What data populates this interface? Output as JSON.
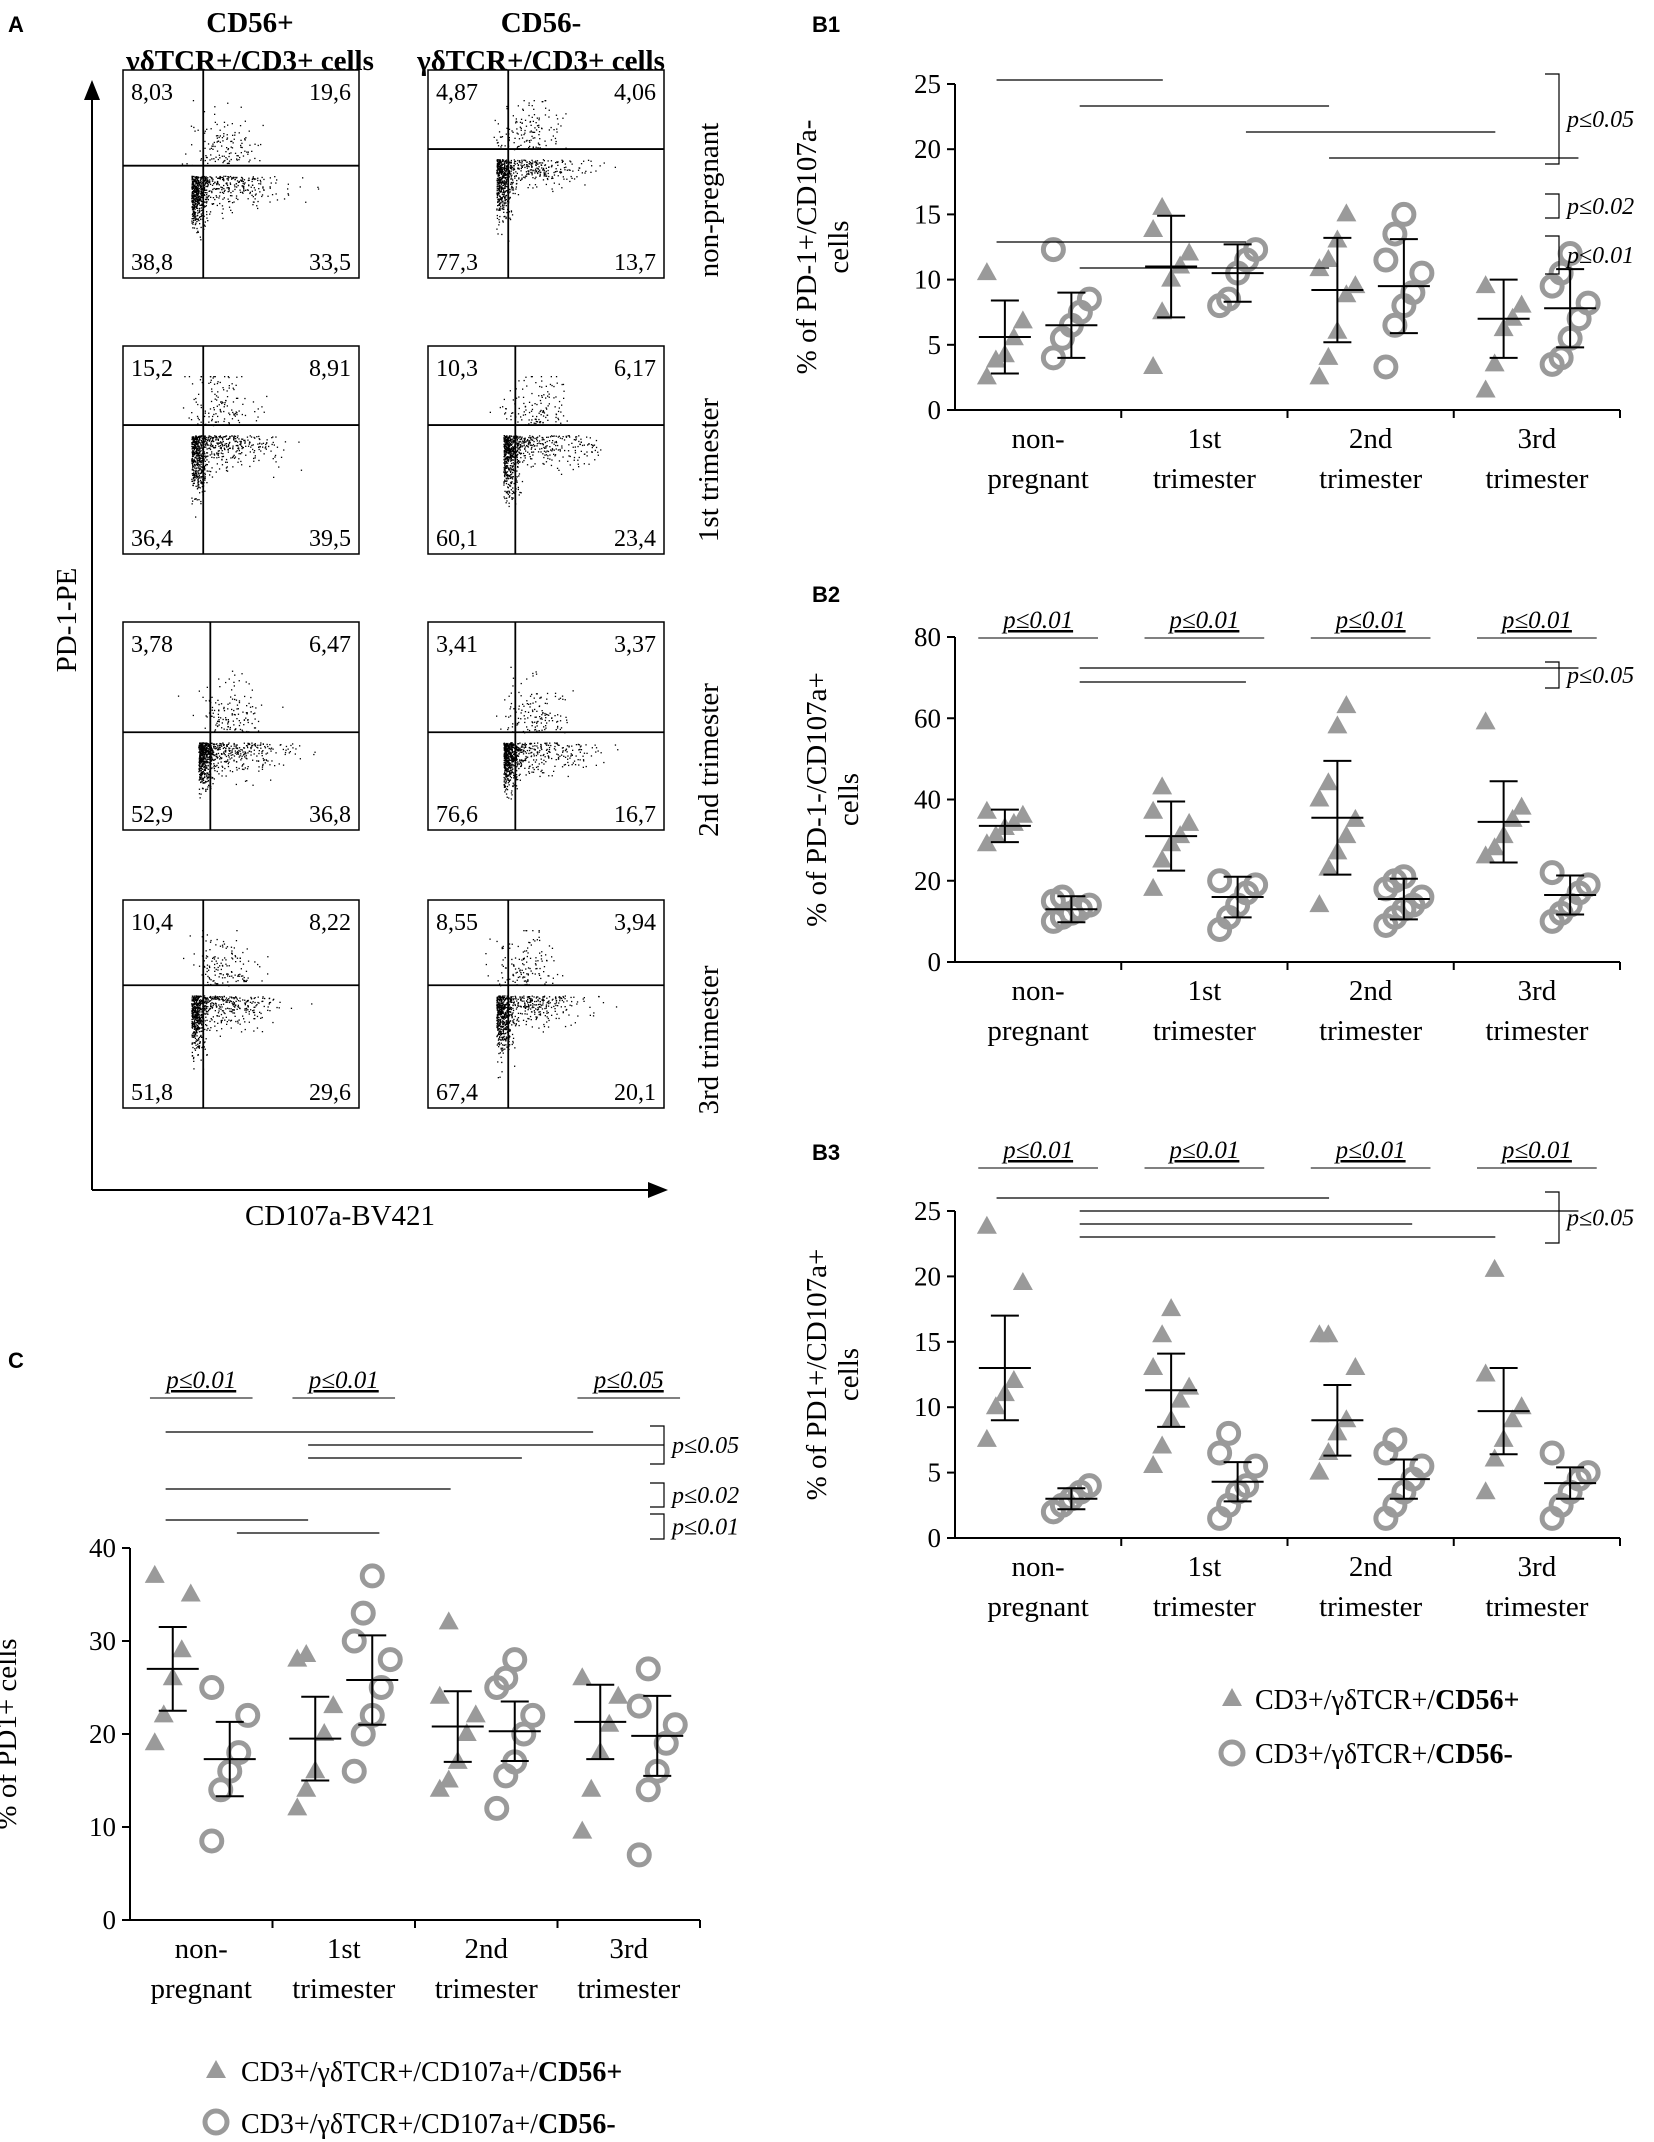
{
  "colors": {
    "marker": "#9a9a9a",
    "axis": "#000000",
    "line": "#000000",
    "text": "#000000"
  },
  "panel_labels": {
    "A": "A",
    "B1": "B1",
    "B2": "B2",
    "B3": "B3",
    "C": "C"
  },
  "groups": [
    "non-\npregnant",
    "1st\ntrimester",
    "2nd\ntrimester",
    "3rd\ntrimester"
  ],
  "panel_A": {
    "col_titles": [
      {
        "line1": "CD56+",
        "line2": "γδTCR+/CD3+ cells"
      },
      {
        "line1": "CD56-",
        "line2": "γδTCR+/CD3+ cells"
      }
    ],
    "row_labels": [
      "non-pregnant",
      "1st trimester",
      "2nd trimester",
      "3rd trimester"
    ],
    "y_axis_label": "PD-1-PE",
    "x_axis_label": "CD107a-BV421",
    "plots": [
      {
        "tl": "8,03",
        "tr": "19,6",
        "bl": "38,8",
        "br": "33,5",
        "vgate": 0.34,
        "hgate": 0.46
      },
      {
        "tl": "4,87",
        "tr": "4,06",
        "bl": "77,3",
        "br": "13,7",
        "vgate": 0.34,
        "hgate": 0.38
      },
      {
        "tl": "15,2",
        "tr": "8,91",
        "bl": "36,4",
        "br": "39,5",
        "vgate": 0.34,
        "hgate": 0.38
      },
      {
        "tl": "10,3",
        "tr": "6,17",
        "bl": "60,1",
        "br": "23,4",
        "vgate": 0.37,
        "hgate": 0.38
      },
      {
        "tl": "3,78",
        "tr": "6,47",
        "bl": "52,9",
        "br": "36,8",
        "vgate": 0.37,
        "hgate": 0.53
      },
      {
        "tl": "3,41",
        "tr": "3,37",
        "bl": "76,6",
        "br": "16,7",
        "vgate": 0.37,
        "hgate": 0.53
      },
      {
        "tl": "10,4",
        "tr": "8,22",
        "bl": "51,8",
        "br": "29,6",
        "vgate": 0.34,
        "hgate": 0.41
      },
      {
        "tl": "8,55",
        "tr": "3,94",
        "bl": "67,4",
        "br": "20,1",
        "vgate": 0.34,
        "hgate": 0.41
      }
    ]
  },
  "legend_B": {
    "pos": "CD3+/γδTCR+/",
    "pos_bold": "CD56+",
    "neg": "CD3+/γδTCR+/",
    "neg_bold": "CD56-"
  },
  "legend_C": {
    "pos": "CD3+/γδTCR+/CD107a+/",
    "pos_bold": "CD56+",
    "neg": "CD3+/γδTCR+/CD107a+/",
    "neg_bold": "CD56-"
  },
  "chart_data": [
    {
      "id": "B1",
      "type": "scatter",
      "title": "",
      "ylabel": "% of PD-1+/CD107a-\ncells",
      "ylim": [
        0,
        25
      ],
      "yticks": [
        0,
        5,
        10,
        15,
        20,
        25
      ],
      "categories": [
        "non-pregnant",
        "1st trimester",
        "2nd trimester",
        "3rd trimester"
      ],
      "series": [
        {
          "name": "CD3+/γδTCR+/CD56+",
          "marker": "triangle",
          "points": [
            [
              2.5,
              3.8,
              4.2,
              5.5,
              6.8,
              10.5
            ],
            [
              3.3,
              7.5,
              10.0,
              11.0,
              12.0,
              13.8,
              15.5
            ],
            [
              2.5,
              4.0,
              6.0,
              8.8,
              9.5,
              10.8,
              11.5,
              13.0,
              15.0
            ],
            [
              1.5,
              3.5,
              6.2,
              7.0,
              8.0,
              9.5
            ]
          ],
          "mean": [
            5.6,
            11.0,
            9.2,
            7.0
          ],
          "sd": [
            2.8,
            3.9,
            4.0,
            3.0
          ]
        },
        {
          "name": "CD3+/γδTCR+/CD56-",
          "marker": "circle",
          "points": [
            [
              4.0,
              5.5,
              6.5,
              7.5,
              8.5,
              12.3
            ],
            [
              8.0,
              8.5,
              10.5,
              11.5,
              12.3
            ],
            [
              3.3,
              6.5,
              8.0,
              9.0,
              10.5,
              11.5,
              13.5,
              15.0
            ],
            [
              3.5,
              4.0,
              5.5,
              7.0,
              8.2,
              9.5,
              10.5,
              12.0
            ]
          ],
          "mean": [
            6.5,
            10.5,
            9.5,
            7.8
          ],
          "sd": [
            2.5,
            2.2,
            3.6,
            3.0
          ]
        }
      ],
      "sig_within": [],
      "sig_brackets": [
        {
          "label": "p≤0.05",
          "lines": [
            [
              0,
              2
            ],
            [
              1,
              4
            ],
            [
              3,
              6
            ],
            [
              4,
              7
            ]
          ]
        },
        {
          "label": "p≤0.02",
          "lines": []
        },
        {
          "label": "p≤0.01",
          "lines": [
            [
              0,
              3
            ],
            [
              1,
              4
            ]
          ]
        }
      ]
    },
    {
      "id": "B2",
      "type": "scatter",
      "title": "",
      "ylabel": "% of PD-1-/CD107a+\ncells",
      "ylim": [
        0,
        80
      ],
      "yticks": [
        0,
        20,
        40,
        60,
        80
      ],
      "categories": [
        "non-pregnant",
        "1st trimester",
        "2nd trimester",
        "3rd trimester"
      ],
      "series": [
        {
          "name": "CD3+/γδTCR+/CD56+",
          "marker": "triangle",
          "points": [
            [
              29,
              31,
              33,
              34,
              36,
              37
            ],
            [
              18,
              25,
              29,
              31,
              34,
              37,
              43
            ],
            [
              14,
              23,
              27,
              31,
              35,
              40,
              44,
              58,
              63
            ],
            [
              26,
              28,
              31,
              35,
              38,
              59
            ]
          ],
          "mean": [
            33.5,
            31.0,
            35.5,
            34.5
          ],
          "sd": [
            4.0,
            8.5,
            14.0,
            10.0
          ]
        },
        {
          "name": "CD3+/γδTCR+/CD56-",
          "marker": "circle",
          "points": [
            [
              10,
              11,
              12,
              13,
              14,
              15,
              16
            ],
            [
              8,
              11,
              14,
              17,
              19,
              20
            ],
            [
              9,
              11,
              13,
              14,
              16,
              18,
              20,
              21
            ],
            [
              10,
              12,
              14,
              17,
              19,
              22
            ]
          ],
          "mean": [
            13.0,
            16.0,
            15.5,
            16.5
          ],
          "sd": [
            3.2,
            5.0,
            5.0,
            4.8
          ]
        }
      ],
      "sig_within": [
        "p≤0.01",
        "p≤0.01",
        "p≤0.01",
        "p≤0.01"
      ],
      "sig_brackets": [
        {
          "label": "p≤0.05",
          "lines": [
            [
              1,
              7
            ],
            [
              1,
              3
            ]
          ]
        }
      ]
    },
    {
      "id": "B3",
      "type": "scatter",
      "title": "",
      "ylabel": "% of PD1+/CD107a+\ncells",
      "ylim": [
        0,
        25
      ],
      "yticks": [
        0,
        5,
        10,
        15,
        20,
        25
      ],
      "categories": [
        "non-pregnant",
        "1st trimester",
        "2nd trimester",
        "3rd trimester"
      ],
      "series": [
        {
          "name": "CD3+/γδTCR+/CD56+",
          "marker": "triangle",
          "points": [
            [
              7.5,
              10.0,
              11.0,
              12.0,
              19.5,
              23.8
            ],
            [
              5.5,
              7.0,
              9.0,
              10.5,
              11.5,
              13.0,
              15.5,
              17.5
            ],
            [
              5.0,
              6.5,
              8.0,
              9.0,
              13.0,
              15.5,
              15.5
            ],
            [
              3.5,
              6.0,
              7.5,
              9.0,
              10.0,
              12.5,
              20.5
            ]
          ],
          "mean": [
            13.0,
            11.3,
            9.0,
            9.7
          ],
          "sd": [
            4.0,
            2.8,
            2.7,
            3.3
          ]
        },
        {
          "name": "CD3+/γδTCR+/CD56-",
          "marker": "circle",
          "points": [
            [
              2.0,
              2.5,
              3.0,
              3.5,
              4.0
            ],
            [
              1.5,
              2.5,
              3.5,
              4.0,
              5.5,
              6.5,
              8.0
            ],
            [
              1.5,
              2.5,
              3.5,
              4.5,
              5.5,
              6.5,
              7.5
            ],
            [
              1.5,
              2.5,
              3.5,
              4.5,
              5.0,
              6.5
            ]
          ],
          "mean": [
            3.0,
            4.3,
            4.5,
            4.2
          ],
          "sd": [
            0.8,
            1.5,
            1.5,
            1.2
          ]
        }
      ],
      "sig_within": [
        "p≤0.01",
        "p≤0.01",
        "p≤0.01",
        "p≤0.01"
      ],
      "sig_brackets": [
        {
          "label": "p≤0.05",
          "lines": [
            [
              0,
              4
            ],
            [
              1,
              7
            ],
            [
              1,
              5
            ],
            [
              1,
              6
            ]
          ]
        }
      ]
    },
    {
      "id": "C",
      "type": "scatter",
      "title": "",
      "ylabel": "% of PD1+ cells",
      "ylim": [
        0,
        40
      ],
      "yticks": [
        0,
        10,
        20,
        30,
        40
      ],
      "categories": [
        "non-pregnant",
        "1st trimester",
        "2nd trimester",
        "3rd trimester"
      ],
      "series": [
        {
          "name": "CD3+/γδTCR+/CD107a+/CD56+",
          "marker": "triangle",
          "points": [
            [
              19.0,
              22.0,
              26.0,
              29.0,
              35.0,
              37.0
            ],
            [
              12.0,
              14.0,
              16.0,
              20.0,
              23.0,
              28.0,
              28.5
            ],
            [
              14.0,
              15.0,
              17.0,
              20.0,
              22.0,
              24.0,
              32.0
            ],
            [
              9.5,
              14.0,
              18.0,
              21.0,
              24.0,
              26.0
            ]
          ],
          "mean": [
            27.0,
            19.5,
            20.8,
            21.3
          ],
          "sd": [
            4.5,
            4.5,
            3.8,
            4.0
          ]
        },
        {
          "name": "CD3+/γδTCR+/CD107a+/CD56-",
          "marker": "circle",
          "points": [
            [
              8.5,
              14.0,
              16.0,
              18.0,
              22.0,
              25.0
            ],
            [
              16.0,
              20.0,
              22.0,
              25.0,
              28.0,
              30.0,
              33.0,
              37.0
            ],
            [
              12.0,
              15.5,
              17.0,
              20.0,
              22.0,
              25.0,
              26.0,
              28.0
            ],
            [
              7.0,
              14.0,
              16.0,
              19.0,
              21.0,
              23.0,
              27.0
            ]
          ],
          "mean": [
            17.3,
            25.8,
            20.3,
            19.8
          ],
          "sd": [
            4.0,
            4.8,
            3.2,
            4.3
          ]
        }
      ],
      "sig_within": [
        "p≤0.01",
        "p≤0.01",
        "",
        "p≤0.05"
      ],
      "sig_brackets": [
        {
          "label": "p≤0.05",
          "lines": [
            [
              0,
              6
            ],
            [
              2,
              7
            ],
            [
              2,
              5
            ]
          ]
        },
        {
          "label": "p≤0.02",
          "lines": [
            [
              0,
              4
            ]
          ]
        },
        {
          "label": "p≤0.01",
          "lines": [
            [
              0,
              2
            ],
            [
              1,
              3
            ]
          ]
        }
      ]
    }
  ]
}
